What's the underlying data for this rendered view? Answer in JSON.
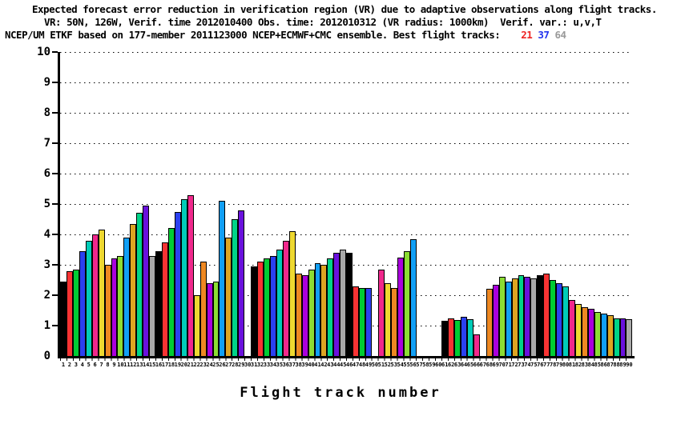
{
  "title": {
    "line1": "Expected forecast error reduction in verification region (VR) due to adaptive observations along flight tracks.",
    "line2": "VR: 50N, 126W, Verif. time 2012010400 Obs. time: 2012010312 (VR radius: 1000km)  Verif. var.: u,v,T",
    "line3_prefix": "NCEP/UM ETKF based on 177-member 2011123000 NCEP+ECMWF+CMC ensemble. Best flight tracks:",
    "best_tracks": [
      {
        "label": "21",
        "color": "#ee2222"
      },
      {
        "label": "37",
        "color": "#2233ee"
      },
      {
        "label": "64",
        "color": "#999999"
      }
    ]
  },
  "chart_data": {
    "type": "bar",
    "title": "Expected forecast error reduction in verification region (VR) due to adaptive observations along flight tracks.",
    "subtitle": "VR: 50N, 126W, Verif. time 2012010400 Obs. time: 2012010312 (VR radius: 1000km)  Verif. var.: u,v,T",
    "annotation": "NCEP/UM ETKF based on 177-member 2011123000 NCEP+ECMWF+CMC ensemble. Best flight tracks: 21 37 64",
    "best_flight_tracks": [
      21,
      37,
      64
    ],
    "xlabel": "Flight track number",
    "ylabel": "",
    "ylim": [
      0,
      10
    ],
    "yticks": [
      0,
      1,
      2,
      3,
      4,
      5,
      6,
      7,
      8,
      9,
      10
    ],
    "grid": "horizontal dotted lines at each integer",
    "legend": "none",
    "categories": [
      1,
      2,
      3,
      4,
      5,
      6,
      7,
      8,
      9,
      10,
      11,
      12,
      13,
      14,
      15,
      16,
      17,
      18,
      19,
      20,
      21,
      22,
      23,
      24,
      25,
      26,
      27,
      28,
      29,
      30,
      31,
      32,
      33,
      34,
      35,
      36,
      37,
      38,
      39,
      40,
      41,
      42,
      43,
      44,
      45,
      46,
      47,
      48,
      49,
      50,
      51,
      52,
      53,
      54,
      55,
      56,
      57,
      58,
      59,
      60,
      61,
      62,
      63,
      64,
      65,
      66,
      67,
      68,
      69,
      70,
      71,
      72,
      73,
      74,
      75,
      76,
      77,
      78,
      79,
      80,
      81,
      82,
      83,
      84,
      85,
      86,
      87,
      88,
      89,
      90
    ],
    "values": [
      2.45,
      2.8,
      2.85,
      3.45,
      3.8,
      4.0,
      4.15,
      3.0,
      3.2,
      3.3,
      3.9,
      4.35,
      4.7,
      4.95,
      3.3,
      3.45,
      3.75,
      4.2,
      4.75,
      5.15,
      5.3,
      2.0,
      3.1,
      2.4,
      2.45,
      5.1,
      3.9,
      4.5,
      4.8,
      0,
      2.95,
      3.1,
      3.2,
      3.3,
      3.5,
      3.8,
      4.1,
      2.7,
      2.65,
      2.85,
      3.05,
      3.0,
      3.2,
      3.4,
      3.5,
      3.4,
      2.3,
      2.25,
      2.25,
      0,
      2.85,
      2.4,
      2.25,
      3.25,
      3.45,
      3.85,
      0,
      0,
      0,
      0,
      1.15,
      1.25,
      1.18,
      1.3,
      1.2,
      0.72,
      0,
      2.2,
      2.35,
      2.6,
      2.45,
      2.55,
      2.65,
      2.6,
      2.55,
      2.65,
      2.7,
      2.5,
      2.4,
      2.3,
      1.85,
      1.7,
      1.6,
      1.55,
      1.45,
      1.4,
      1.35,
      1.25,
      1.25,
      1.2
    ],
    "missing_tracks": [
      30,
      50,
      57,
      58,
      59,
      60,
      67
    ],
    "color_cycle_15": [
      "#000000",
      "#f83333",
      "#00cc33",
      "#2b40f0",
      "#00ccb8",
      "#f0288c",
      "#eed830",
      "#ee8822",
      "#aa00dd",
      "#8cdd33",
      "#119ff5",
      "#dda522",
      "#00d488",
      "#6a11dd",
      "#a8a8a8"
    ]
  }
}
